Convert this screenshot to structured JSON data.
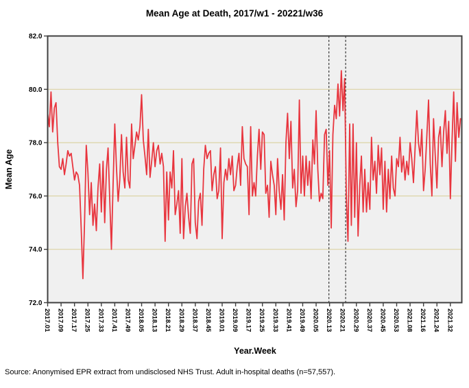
{
  "window": {
    "background": "#ffffff"
  },
  "chart_data": {
    "type": "line",
    "title": "Mean Age at Death, 2017/w1 - 20221/w36",
    "xlabel": "Year.Week",
    "ylabel": "Mean Age",
    "source_note": "Source: Anonymised EPR extract from undisclosed NHS Trust. Adult in-hospital deaths (n=57,557).",
    "ylim": [
      72.0,
      82.0
    ],
    "y_ticks": [
      82,
      80,
      78,
      76,
      74,
      72
    ],
    "y_tick_labels": [
      "82.0",
      "80.0",
      "78.0",
      "76.0",
      "74.0",
      "72.0"
    ],
    "grid_values": [
      74,
      76,
      78,
      80
    ],
    "grid": "horizontal-only",
    "legend": null,
    "x_tick_labels": [
      "2017.01",
      "2017.09",
      "2017.17",
      "2017.25",
      "2017.33",
      "2017.41",
      "2017.49",
      "2018.05",
      "2018.13",
      "2018.21",
      "2018.29",
      "2018.37",
      "2018.45",
      "2019.01",
      "2019.09",
      "2019.17",
      "2019.25",
      "2019.33",
      "2019.41",
      "2019.49",
      "2020.05",
      "2020.13",
      "2020.21",
      "2020.29",
      "2020.37",
      "2020.45",
      "2020.53",
      "2021.08",
      "2021.16",
      "2021.24",
      "2021.32"
    ],
    "x_tick_week_indices": [
      0,
      8,
      16,
      24,
      32,
      40,
      48,
      56,
      64,
      72,
      80,
      88,
      96,
      104,
      112,
      120,
      128,
      136,
      144,
      152,
      160,
      168,
      176,
      184,
      192,
      200,
      208,
      216,
      224,
      232,
      240
    ],
    "reference_lines": {
      "style": "dashed",
      "week_indices": [
        167.6,
        177.6
      ]
    },
    "colors": {
      "line": "#e8353e",
      "plot_background": "#f0f0f0",
      "gridline": "#dbd3a4",
      "frame": "#3f3f3f",
      "reference_line": "#404040",
      "text": "#000000"
    },
    "series": [
      {
        "name": "Mean Age",
        "color": "#e8353e",
        "start_week": "2017.01",
        "values": [
          79.1,
          78.6,
          79.9,
          78.4,
          79.3,
          79.5,
          78.0,
          77.1,
          77.0,
          77.4,
          76.8,
          77.2,
          77.7,
          77.5,
          77.6,
          77.1,
          76.6,
          76.9,
          76.8,
          76.4,
          74.8,
          72.9,
          75.0,
          77.9,
          76.9,
          75.3,
          76.5,
          74.9,
          75.7,
          74.7,
          76.3,
          77.2,
          75.4,
          77.3,
          75.0,
          77.0,
          77.8,
          75.9,
          74.0,
          76.4,
          78.7,
          77.1,
          75.8,
          76.6,
          78.3,
          76.9,
          76.3,
          78.2,
          76.6,
          76.3,
          78.7,
          77.4,
          77.9,
          78.4,
          78.1,
          78.6,
          79.8,
          78.1,
          77.5,
          76.8,
          78.5,
          76.7,
          77.3,
          78.0,
          77.1,
          77.7,
          77.9,
          77.2,
          77.6,
          77.1,
          74.3,
          76.9,
          75.1,
          76.9,
          76.3,
          77.7,
          75.3,
          75.7,
          76.2,
          74.6,
          77.4,
          74.4,
          75.6,
          76.1,
          75.2,
          74.6,
          77.2,
          77.4,
          75.0,
          74.4,
          75.8,
          76.1,
          74.9,
          77.0,
          77.9,
          77.4,
          77.6,
          77.7,
          76.2,
          76.8,
          77.1,
          75.9,
          76.2,
          77.8,
          74.4,
          76.5,
          77.0,
          76.6,
          77.4,
          76.8,
          77.5,
          76.2,
          76.4,
          77.1,
          77.6,
          76.4,
          78.6,
          77.4,
          77.2,
          77.1,
          75.3,
          78.6,
          76.0,
          76.5,
          76.0,
          77.5,
          78.5,
          77.0,
          78.4,
          78.3,
          76.1,
          76.4,
          75.2,
          77.3,
          76.8,
          76.4,
          75.3,
          77.4,
          76.2,
          75.5,
          76.8,
          75.1,
          78.0,
          79.1,
          77.4,
          78.8,
          76.3,
          77.0,
          75.6,
          76.2,
          79.6,
          76.1,
          77.5,
          76.0,
          77.5,
          76.4,
          77.3,
          75.9,
          78.1,
          77.2,
          79.2,
          77.0,
          75.8,
          76.1,
          75.9,
          78.3,
          78.5,
          76.4,
          77.7,
          74.8,
          78.3,
          79.4,
          78.9,
          80.2,
          79.0,
          80.7,
          79.2,
          80.4,
          76.0,
          74.3,
          78.7,
          74.9,
          78.7,
          75.2,
          78.0,
          74.5,
          76.4,
          77.5,
          75.4,
          77.0,
          75.4,
          76.5,
          75.5,
          78.2,
          76.6,
          77.3,
          76.1,
          77.9,
          76.8,
          77.8,
          75.5,
          77.3,
          75.4,
          77.0,
          75.9,
          77.5,
          76.3,
          76.0,
          77.4,
          77.1,
          78.2,
          76.9,
          77.5,
          76.6,
          77.3,
          76.8,
          78.0,
          77.4,
          76.5,
          77.8,
          79.2,
          78.0,
          77.5,
          78.5,
          76.2,
          77.0,
          78.3,
          79.6,
          77.2,
          76.0,
          78.9,
          77.5,
          76.3,
          78.2,
          78.6,
          77.1,
          78.4,
          79.2,
          77.6,
          78.8,
          75.9,
          78.1,
          79.9,
          77.3,
          79.5,
          78.2,
          78.9
        ]
      }
    ]
  }
}
